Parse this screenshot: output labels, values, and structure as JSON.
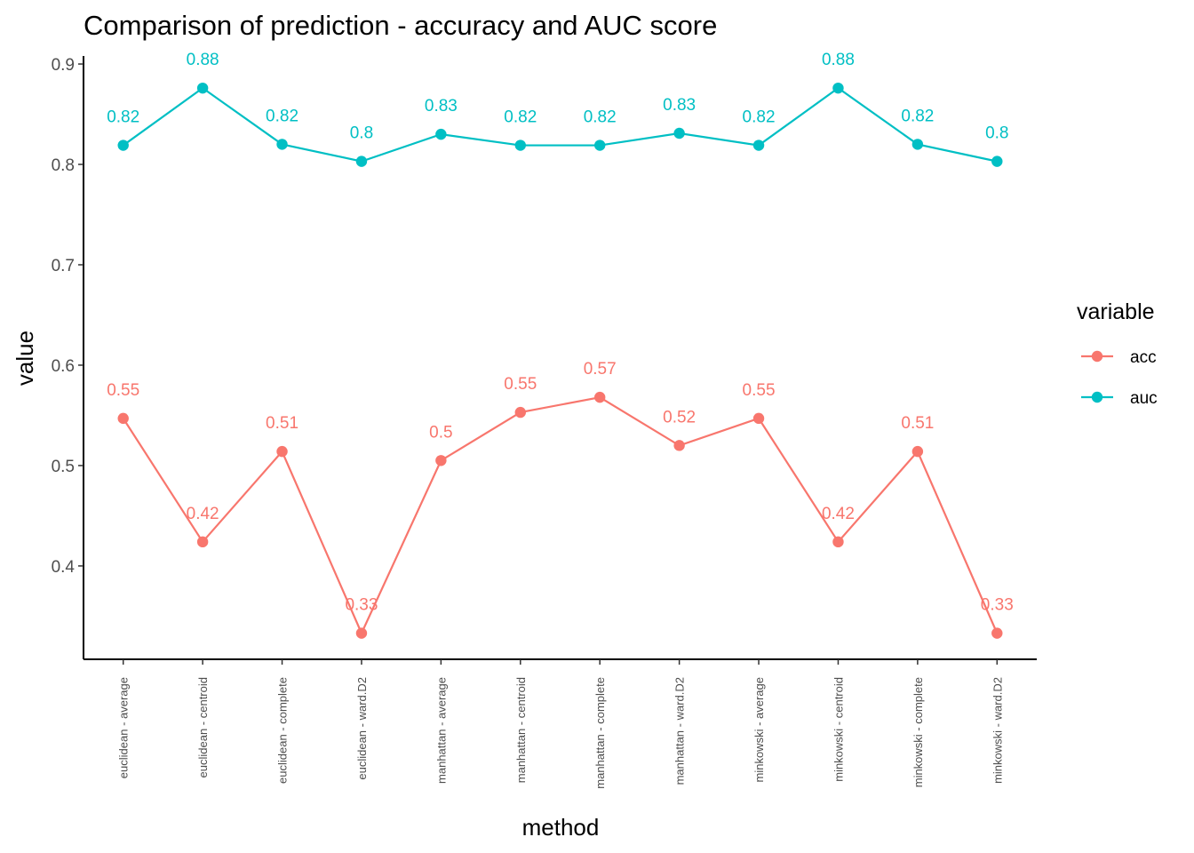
{
  "chart_data": {
    "type": "line",
    "title": "Comparison of prediction - accuracy and AUC score",
    "xlabel": "method",
    "ylabel": "value",
    "ylim": [
      0.307,
      0.908
    ],
    "yticks": [
      0.4,
      0.5,
      0.6,
      0.7,
      0.8,
      0.9
    ],
    "grid": false,
    "legend_position": "right",
    "legend_title": "variable",
    "categories": [
      "euclidean - average",
      "euclidean - centroid",
      "euclidean - complete",
      "euclidean - ward.D2",
      "manhattan - average",
      "manhattan - centroid",
      "manhattan - complete",
      "manhattan - ward.D2",
      "minkowski - average",
      "minkowski - centroid",
      "minkowski - complete",
      "minkowski - ward.D2"
    ],
    "series": [
      {
        "name": "acc",
        "color": "#F8766D",
        "values": [
          0.547,
          0.424,
          0.514,
          0.333,
          0.505,
          0.553,
          0.568,
          0.52,
          0.547,
          0.424,
          0.514,
          0.333
        ],
        "labels": [
          "0.55",
          "0.42",
          "0.51",
          "0.33",
          "0.5",
          "0.55",
          "0.57",
          "0.52",
          "0.55",
          "0.42",
          "0.51",
          "0.33"
        ]
      },
      {
        "name": "auc",
        "color": "#00BFC4",
        "values": [
          0.819,
          0.876,
          0.82,
          0.803,
          0.83,
          0.819,
          0.819,
          0.831,
          0.819,
          0.876,
          0.82,
          0.803
        ],
        "labels": [
          "0.82",
          "0.88",
          "0.82",
          "0.8",
          "0.83",
          "0.82",
          "0.82",
          "0.83",
          "0.82",
          "0.88",
          "0.82",
          "0.8"
        ]
      }
    ]
  }
}
